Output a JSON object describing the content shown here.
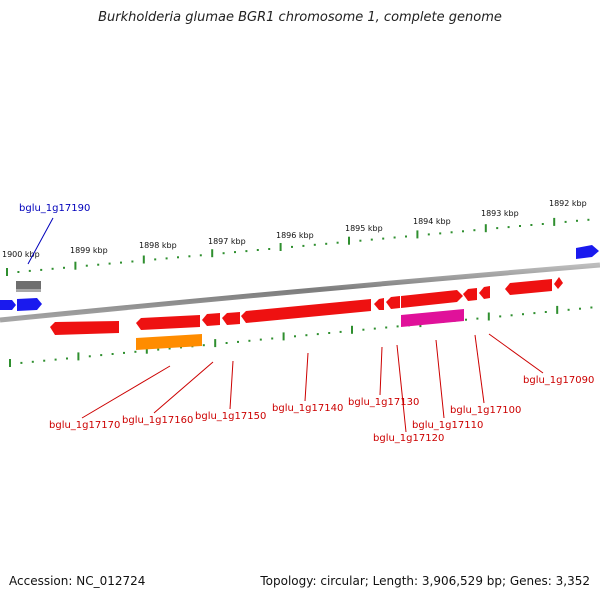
{
  "title": "Burkholderia glumae BGR1 chromosome 1, complete genome",
  "footer": {
    "accession": "Accession: NC_012724",
    "summary": "Topology: circular; Length: 3,906,529 bp; Genes: 3,352"
  },
  "colors": {
    "cds": "#ee1111",
    "rna": "#ff8c00",
    "pseudo": "#e0119a",
    "gray_feature": "#6e6e6e",
    "neighbor": "#1a1aee",
    "backbone": "#8a8a8a",
    "ticks": "#2f8f2f",
    "gene_label": "#cc0000",
    "neighbor_label": "#0000bb"
  },
  "scale": {
    "ticks": [
      {
        "kbp": 1900,
        "label": "1900 kbp"
      },
      {
        "kbp": 1899,
        "label": "1899 kbp"
      },
      {
        "kbp": 1898,
        "label": "1898 kbp"
      },
      {
        "kbp": 1897,
        "label": "1897 kbp"
      },
      {
        "kbp": 1896,
        "label": "1896 kbp"
      },
      {
        "kbp": 1895,
        "label": "1895 kbp"
      },
      {
        "kbp": 1894,
        "label": "1894 kbp"
      },
      {
        "kbp": 1893,
        "label": "1893 kbp"
      },
      {
        "kbp": 1892,
        "label": "1892 kbp"
      }
    ]
  },
  "gene_labels": [
    {
      "id": "bglu_1g17190",
      "text": "bglu_1g17190",
      "kind": "neighbor"
    },
    {
      "id": "bglu_1g17170",
      "text": "bglu_1g17170",
      "kind": "gene"
    },
    {
      "id": "bglu_1g17160",
      "text": "bglu_1g17160",
      "kind": "gene"
    },
    {
      "id": "bglu_1g17150",
      "text": "bglu_1g17150",
      "kind": "gene"
    },
    {
      "id": "bglu_1g17140",
      "text": "bglu_1g17140",
      "kind": "gene"
    },
    {
      "id": "bglu_1g17130",
      "text": "bglu_1g17130",
      "kind": "gene"
    },
    {
      "id": "bglu_1g17120",
      "text": "bglu_1g17120",
      "kind": "gene"
    },
    {
      "id": "bglu_1g17110",
      "text": "bglu_1g17110",
      "kind": "gene"
    },
    {
      "id": "bglu_1g17100",
      "text": "bglu_1g17100",
      "kind": "gene"
    },
    {
      "id": "bglu_1g17090",
      "text": "bglu_1g17090",
      "kind": "gene"
    }
  ]
}
